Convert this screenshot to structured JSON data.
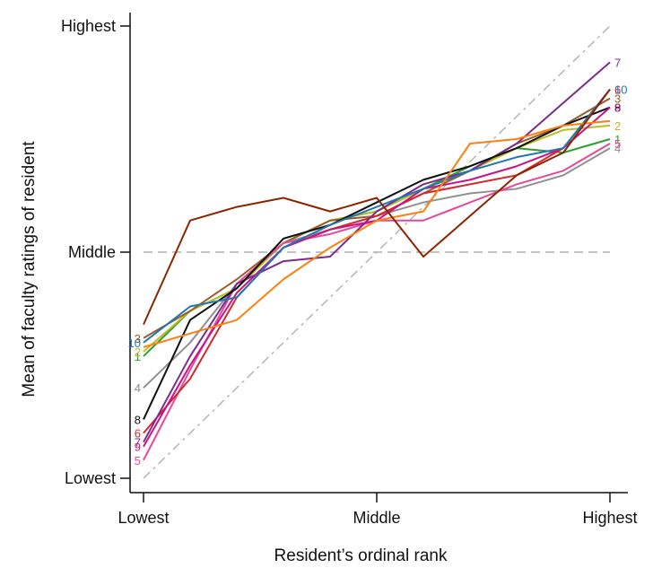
{
  "chart_data": {
    "type": "line",
    "xlabel": "Resident’s ordinal rank",
    "ylabel": "Mean of faculty ratings of resident",
    "x_ticks": [
      "Lowest",
      "Middle",
      "Highest"
    ],
    "y_ticks": [
      "Lowest",
      "Middle",
      "Highest"
    ],
    "xlim": [
      0,
      1
    ],
    "ylim": [
      0,
      1
    ],
    "reference_lines": [
      {
        "type": "identity",
        "style": "dash-dot",
        "color": "#b0b0b0"
      },
      {
        "type": "horizontal",
        "y": 0.5,
        "style": "dashed",
        "color": "#b0b0b0"
      }
    ],
    "x": [
      0,
      0.1,
      0.2,
      0.3,
      0.4,
      0.5,
      0.6,
      0.7,
      0.8,
      0.9,
      1
    ],
    "series": [
      {
        "label": "1",
        "color": "#2ca02c",
        "values": [
          0.27,
          0.37,
          0.42,
          0.52,
          0.57,
          0.59,
          0.64,
          0.69,
          0.73,
          0.72,
          0.75
        ]
      },
      {
        "label": "2",
        "color": "#bcbd22",
        "values": [
          0.28,
          0.37,
          0.42,
          0.52,
          0.57,
          0.59,
          0.64,
          0.68,
          0.73,
          0.77,
          0.78
        ]
      },
      {
        "label": "3",
        "color": "#9c5b2c",
        "values": [
          0.31,
          0.37,
          0.44,
          0.52,
          0.57,
          0.58,
          0.63,
          0.68,
          0.74,
          0.78,
          0.84
        ]
      },
      {
        "label": "4",
        "color": "#909090",
        "values": [
          0.2,
          0.3,
          0.43,
          0.52,
          0.55,
          0.58,
          0.61,
          0.63,
          0.64,
          0.67,
          0.73
        ]
      },
      {
        "label": "5",
        "color": "#e8479b",
        "values": [
          0.04,
          0.24,
          0.43,
          0.52,
          0.54,
          0.57,
          0.57,
          0.61,
          0.65,
          0.68,
          0.74
        ]
      },
      {
        "label": "6",
        "color": "#d62728",
        "values": [
          0.1,
          0.22,
          0.4,
          0.51,
          0.55,
          0.58,
          0.63,
          0.65,
          0.67,
          0.73,
          0.86
        ]
      },
      {
        "label": "7",
        "color": "#7b2b8f",
        "values": [
          0.08,
          0.27,
          0.43,
          0.48,
          0.49,
          0.59,
          0.65,
          0.68,
          0.74,
          0.83,
          0.92
        ]
      },
      {
        "label": "8",
        "color": "#111111",
        "values": [
          0.13,
          0.35,
          0.42,
          0.53,
          0.56,
          0.61,
          0.66,
          0.69,
          0.73,
          0.78,
          0.82
        ]
      },
      {
        "label": "9",
        "color": "#c71585",
        "values": [
          0.07,
          0.25,
          0.41,
          0.51,
          0.55,
          0.57,
          0.64,
          0.66,
          0.69,
          0.73,
          0.82
        ]
      },
      {
        "label": "10",
        "color": "#1f77b4",
        "values": [
          0.3,
          0.38,
          0.4,
          0.51,
          0.56,
          0.6,
          0.64,
          0.68,
          0.71,
          0.73,
          0.86
        ]
      },
      {
        "label": "",
        "color": "#ff7f0e",
        "values": [
          0.29,
          0.32,
          0.35,
          0.44,
          0.51,
          0.57,
          0.59,
          0.74,
          0.75,
          0.78,
          0.79
        ]
      },
      {
        "label": "",
        "color": "#8b2500",
        "values": [
          0.34,
          0.57,
          0.6,
          0.62,
          0.59,
          0.62,
          0.49,
          0.58,
          0.67,
          0.72,
          0.86
        ]
      }
    ]
  }
}
